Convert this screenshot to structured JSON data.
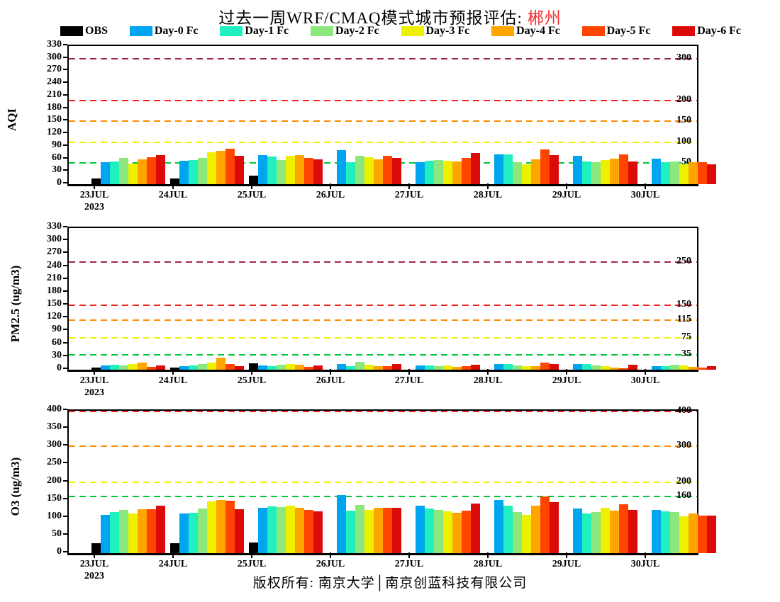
{
  "title": {
    "prefix": "过去一周WRF/CMAQ模式城市预报评估: ",
    "city": "郴州",
    "city_color": "#F23030"
  },
  "legend": [
    {
      "label": "OBS",
      "color": "#000000"
    },
    {
      "label": "Day-0 Fc",
      "color": "#00A5F0"
    },
    {
      "label": "Day-1 Fc",
      "color": "#20F0C0"
    },
    {
      "label": "Day-2 Fc",
      "color": "#8CE87C"
    },
    {
      "label": "Day-3 Fc",
      "color": "#EEF000"
    },
    {
      "label": "Day-4 Fc",
      "color": "#FFA500"
    },
    {
      "label": "Day-5 Fc",
      "color": "#FF4500"
    },
    {
      "label": "Day-6 Fc",
      "color": "#DD0A0A"
    }
  ],
  "footer": "版权所有: 南京大学│南京创蓝科技有限公司",
  "chart_data": [
    {
      "type": "bar",
      "ylabel": "AQI",
      "ylim": [
        0,
        330
      ],
      "yticks": [
        0,
        30,
        60,
        90,
        120,
        150,
        180,
        210,
        240,
        270,
        300,
        330
      ],
      "categories": [
        "23JUL",
        "24JUL",
        "25JUL",
        "26JUL",
        "27JUL",
        "28JUL",
        "29JUL",
        "30JUL"
      ],
      "year": "2023",
      "grid": "off",
      "legend_position": "top",
      "reference_lines": [
        {
          "value": 50,
          "color": "#00C838",
          "label": "50"
        },
        {
          "value": 100,
          "color": "#F0F000",
          "label": "100"
        },
        {
          "value": 150,
          "color": "#FF8C00",
          "label": "150"
        },
        {
          "value": 200,
          "color": "#F02020",
          "label": "200"
        },
        {
          "value": 300,
          "color": "#A02458",
          "label": "300"
        }
      ],
      "series": [
        {
          "name": "OBS",
          "color": "#000000",
          "values": [
            14,
            14,
            21,
            0,
            0,
            0,
            0,
            0
          ]
        },
        {
          "name": "Day-0 Fc",
          "color": "#00A5F0",
          "values": [
            52,
            56,
            70,
            82,
            53,
            71,
            67,
            61
          ]
        },
        {
          "name": "Day-1 Fc",
          "color": "#20F0C0",
          "values": [
            55,
            57,
            66,
            52,
            56,
            71,
            54,
            52
          ]
        },
        {
          "name": "Day-2 Fc",
          "color": "#8CE87C",
          "values": [
            62,
            62,
            57,
            67,
            58,
            52,
            52,
            55
          ]
        },
        {
          "name": "Day-3 Fc",
          "color": "#EEF000",
          "values": [
            50,
            76,
            67,
            64,
            56,
            47,
            58,
            48
          ]
        },
        {
          "name": "Day-4 Fc",
          "color": "#FFA500",
          "values": [
            59,
            79,
            70,
            60,
            55,
            59,
            61,
            52
          ]
        },
        {
          "name": "Day-5 Fc",
          "color": "#FF4500",
          "values": [
            64,
            85,
            62,
            67,
            63,
            83,
            72,
            52
          ]
        },
        {
          "name": "Day-6 Fc",
          "color": "#DD0A0A",
          "values": [
            70,
            67,
            59,
            62,
            75,
            69,
            55,
            48
          ]
        }
      ]
    },
    {
      "type": "bar",
      "ylabel": "PM2.5 (ug/m3)",
      "ylim": [
        0,
        330
      ],
      "yticks": [
        0,
        30,
        60,
        90,
        120,
        150,
        180,
        210,
        240,
        270,
        300,
        330
      ],
      "categories": [
        "23JUL",
        "24JUL",
        "25JUL",
        "26JUL",
        "27JUL",
        "28JUL",
        "29JUL",
        "30JUL"
      ],
      "year": "2023",
      "grid": "off",
      "legend_position": "top",
      "reference_lines": [
        {
          "value": 35,
          "color": "#00C838",
          "label": "35"
        },
        {
          "value": 75,
          "color": "#F0F000",
          "label": "75"
        },
        {
          "value": 115,
          "color": "#FF8C00",
          "label": "115"
        },
        {
          "value": 150,
          "color": "#F02020",
          "label": "150"
        },
        {
          "value": 250,
          "color": "#A02458",
          "label": "250"
        }
      ],
      "series": [
        {
          "name": "OBS",
          "color": "#000000",
          "values": [
            5,
            5,
            15,
            0,
            0,
            0,
            0,
            0
          ]
        },
        {
          "name": "Day-0 Fc",
          "color": "#00A5F0",
          "values": [
            10,
            9,
            10,
            13,
            10,
            13,
            13,
            9
          ]
        },
        {
          "name": "Day-1 Fc",
          "color": "#20F0C0",
          "values": [
            12,
            10,
            9,
            8,
            10,
            13,
            13,
            8
          ]
        },
        {
          "name": "Day-2 Fc",
          "color": "#8CE87C",
          "values": [
            10,
            13,
            12,
            18,
            9,
            10,
            10,
            12
          ]
        },
        {
          "name": "Day-3 Fc",
          "color": "#EEF000",
          "values": [
            14,
            17,
            13,
            12,
            10,
            8,
            8,
            10
          ]
        },
        {
          "name": "Day-4 Fc",
          "color": "#FFA500",
          "values": [
            17,
            28,
            11,
            8,
            7,
            8,
            5,
            6
          ]
        },
        {
          "name": "Day-5 Fc",
          "color": "#FF4500",
          "values": [
            7,
            13,
            6,
            9,
            9,
            17,
            4,
            5
          ]
        },
        {
          "name": "Day-6 Fc",
          "color": "#DD0A0A",
          "values": [
            10,
            9,
            10,
            14,
            12,
            14,
            12,
            8
          ]
        }
      ]
    },
    {
      "type": "bar",
      "ylabel": "O3 (ug/m3)",
      "ylim": [
        0,
        400
      ],
      "yticks": [
        0,
        50,
        100,
        150,
        200,
        250,
        300,
        350,
        400
      ],
      "categories": [
        "23JUL",
        "24JUL",
        "25JUL",
        "26JUL",
        "27JUL",
        "28JUL",
        "29JUL",
        "30JUL"
      ],
      "year": "2023",
      "grid": "off",
      "legend_position": "top",
      "reference_lines": [
        {
          "value": 160,
          "color": "#00C838",
          "label": "160"
        },
        {
          "value": 200,
          "color": "#F0F000",
          "label": "200"
        },
        {
          "value": 300,
          "color": "#FF8C00",
          "label": "300"
        },
        {
          "value": 400,
          "color": "#F02020",
          "label": "400"
        }
      ],
      "series": [
        {
          "name": "OBS",
          "color": "#000000",
          "values": [
            27,
            27,
            30,
            0,
            0,
            0,
            0,
            0
          ]
        },
        {
          "name": "Day-0 Fc",
          "color": "#00A5F0",
          "values": [
            108,
            111,
            128,
            164,
            133,
            150,
            125,
            122
          ]
        },
        {
          "name": "Day-1 Fc",
          "color": "#20F0C0",
          "values": [
            115,
            113,
            132,
            120,
            125,
            133,
            112,
            118
          ]
        },
        {
          "name": "Day-2 Fc",
          "color": "#8CE87C",
          "values": [
            122,
            126,
            130,
            135,
            121,
            115,
            115,
            115
          ]
        },
        {
          "name": "Day-3 Fc",
          "color": "#EEF000",
          "values": [
            111,
            146,
            134,
            122,
            117,
            107,
            127,
            104
          ]
        },
        {
          "name": "Day-4 Fc",
          "color": "#FFA500",
          "values": [
            124,
            150,
            128,
            127,
            114,
            133,
            119,
            112
          ]
        },
        {
          "name": "Day-5 Fc",
          "color": "#FF4500",
          "values": [
            123,
            147,
            121,
            128,
            120,
            160,
            137,
            106
          ]
        },
        {
          "name": "Day-6 Fc",
          "color": "#DD0A0A",
          "values": [
            133,
            123,
            117,
            127,
            139,
            143,
            121,
            106
          ]
        }
      ]
    }
  ]
}
